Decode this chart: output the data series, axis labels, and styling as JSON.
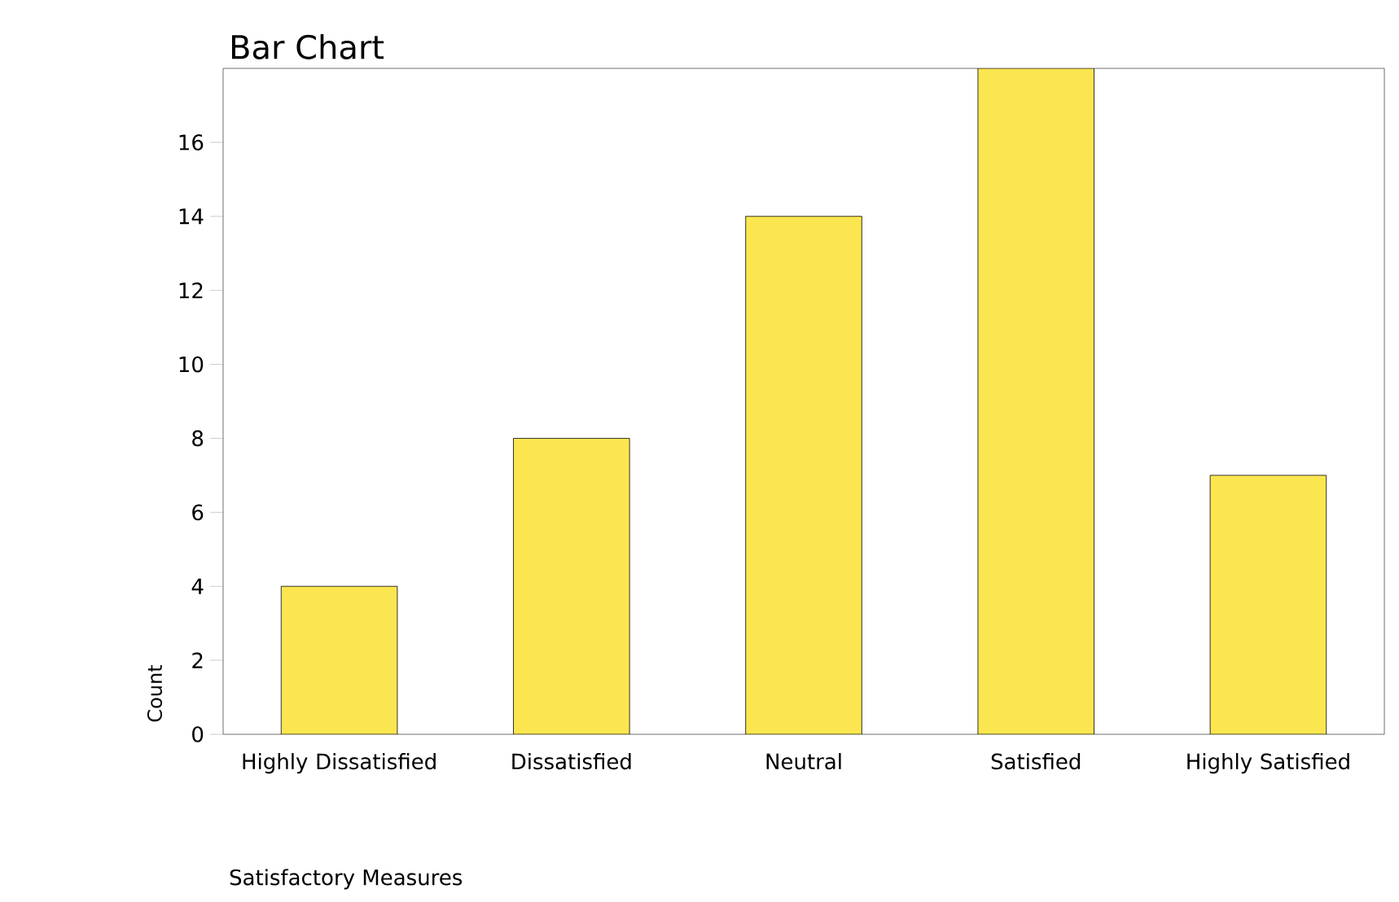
{
  "chart_data": {
    "type": "bar",
    "title": "Bar Chart",
    "xlabel": "Satisfactory Measures",
    "ylabel": "Count",
    "categories": [
      "Highly Dissatisfied",
      "Dissatisfied",
      "Neutral",
      "Satisfied",
      "Highly Satisfied"
    ],
    "values": [
      4,
      8,
      14,
      18,
      7
    ],
    "color": "#fce650",
    "ylim": [
      0,
      18
    ],
    "yticks": [
      0,
      2,
      4,
      6,
      8,
      10,
      12,
      14,
      16
    ]
  }
}
